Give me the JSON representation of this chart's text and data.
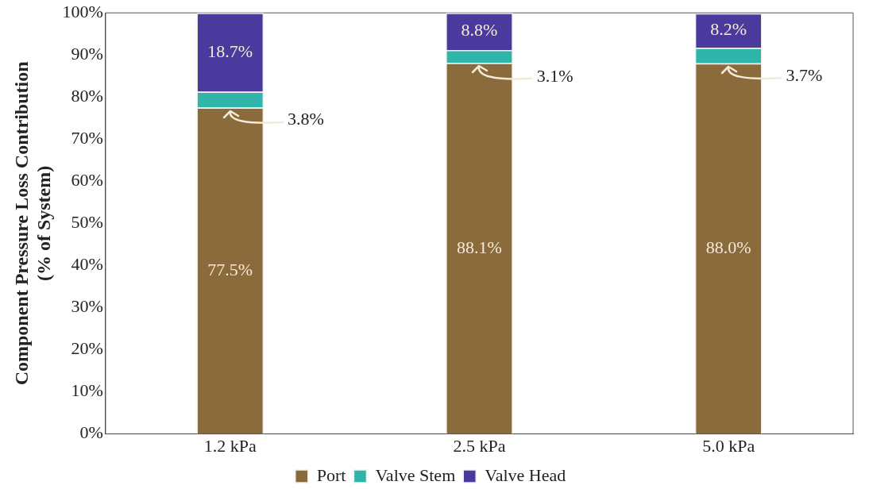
{
  "chart_data": {
    "type": "bar",
    "stacked": true,
    "ylabel": "Component Pressure Loss Contribution\n(% of System)",
    "categories": [
      "1.2 kPa",
      "2.5 kPa",
      "5.0 kPa"
    ],
    "series": [
      {
        "name": "Port",
        "color": "#8b6a3c",
        "values": [
          77.5,
          88.1,
          88.0
        ],
        "value_labels": [
          "77.5%",
          "88.1%",
          "88.0%"
        ]
      },
      {
        "name": "Valve Stem",
        "color": "#2fb5a9",
        "values": [
          3.8,
          3.1,
          3.7
        ],
        "value_labels": [
          "3.8%",
          "3.1%",
          "3.7%"
        ]
      },
      {
        "name": "Valve Head",
        "color": "#4a3a9e",
        "values": [
          18.7,
          8.8,
          8.2
        ],
        "value_labels": [
          "18.7%",
          "8.8%",
          "8.2%"
        ]
      }
    ],
    "ylim": [
      0,
      100
    ],
    "yticks": [
      {
        "value": 0,
        "label": "0%"
      },
      {
        "value": 10,
        "label": "10%"
      },
      {
        "value": 20,
        "label": "20%"
      },
      {
        "value": 30,
        "label": "30%"
      },
      {
        "value": 40,
        "label": "40%"
      },
      {
        "value": 50,
        "label": "50%"
      },
      {
        "value": 60,
        "label": "60%"
      },
      {
        "value": 70,
        "label": "70%"
      },
      {
        "value": 80,
        "label": "80%"
      },
      {
        "value": 90,
        "label": "90%"
      },
      {
        "value": 100,
        "label": "100%"
      }
    ],
    "grid": false,
    "legend": "bottom"
  }
}
